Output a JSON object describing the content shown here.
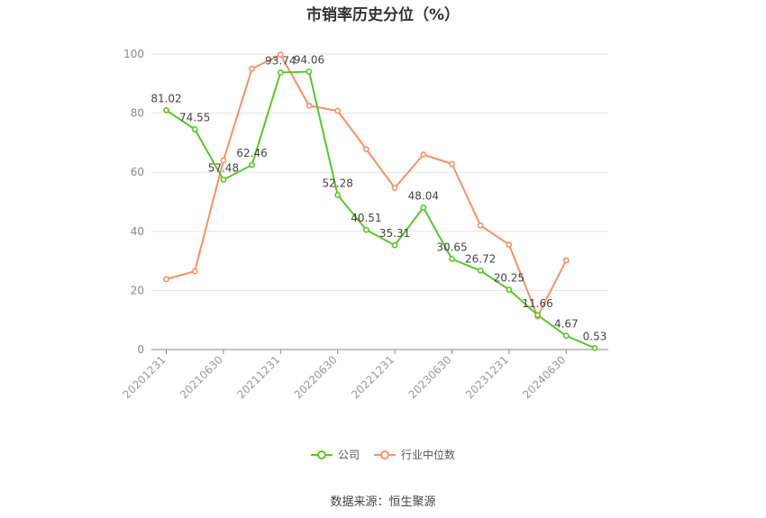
{
  "chart_data": {
    "type": "line",
    "title": "市销率历史分位（%）",
    "xlabel": "",
    "ylabel": "",
    "ylim": [
      0,
      100
    ],
    "yticks": [
      0,
      20,
      40,
      60,
      80,
      100
    ],
    "tick_labels": [
      "20201231",
      "20210630",
      "20211231",
      "20220630",
      "20221231",
      "20230630",
      "20231231",
      "20240630"
    ],
    "tick_index": [
      0,
      2,
      4,
      6,
      8,
      10,
      12,
      14
    ],
    "grid": true,
    "legend_position": "bottom",
    "series": [
      {
        "name": "公司",
        "color": "#5ac52b",
        "values": [
          81.02,
          74.55,
          57.48,
          62.46,
          93.74,
          94.06,
          52.28,
          40.51,
          35.31,
          48.04,
          30.65,
          26.72,
          20.25,
          11.66,
          4.67,
          0.53
        ],
        "labels": [
          "81.02",
          "74.55",
          "57.48",
          "62.46",
          "93.74",
          "94.06",
          "52.28",
          "40.51",
          "35.31",
          "48.04",
          "30.65",
          "26.72",
          "20.25",
          "11.66",
          "4.67",
          "0.53"
        ]
      },
      {
        "name": "行业中位数",
        "color": "#f39169",
        "values": [
          23.8,
          26.5,
          64.0,
          95.0,
          99.8,
          82.5,
          80.8,
          67.8,
          54.7,
          66.0,
          62.8,
          42.0,
          35.5,
          11.2,
          30.2
        ]
      }
    ]
  },
  "source": "数据来源：恒生聚源"
}
